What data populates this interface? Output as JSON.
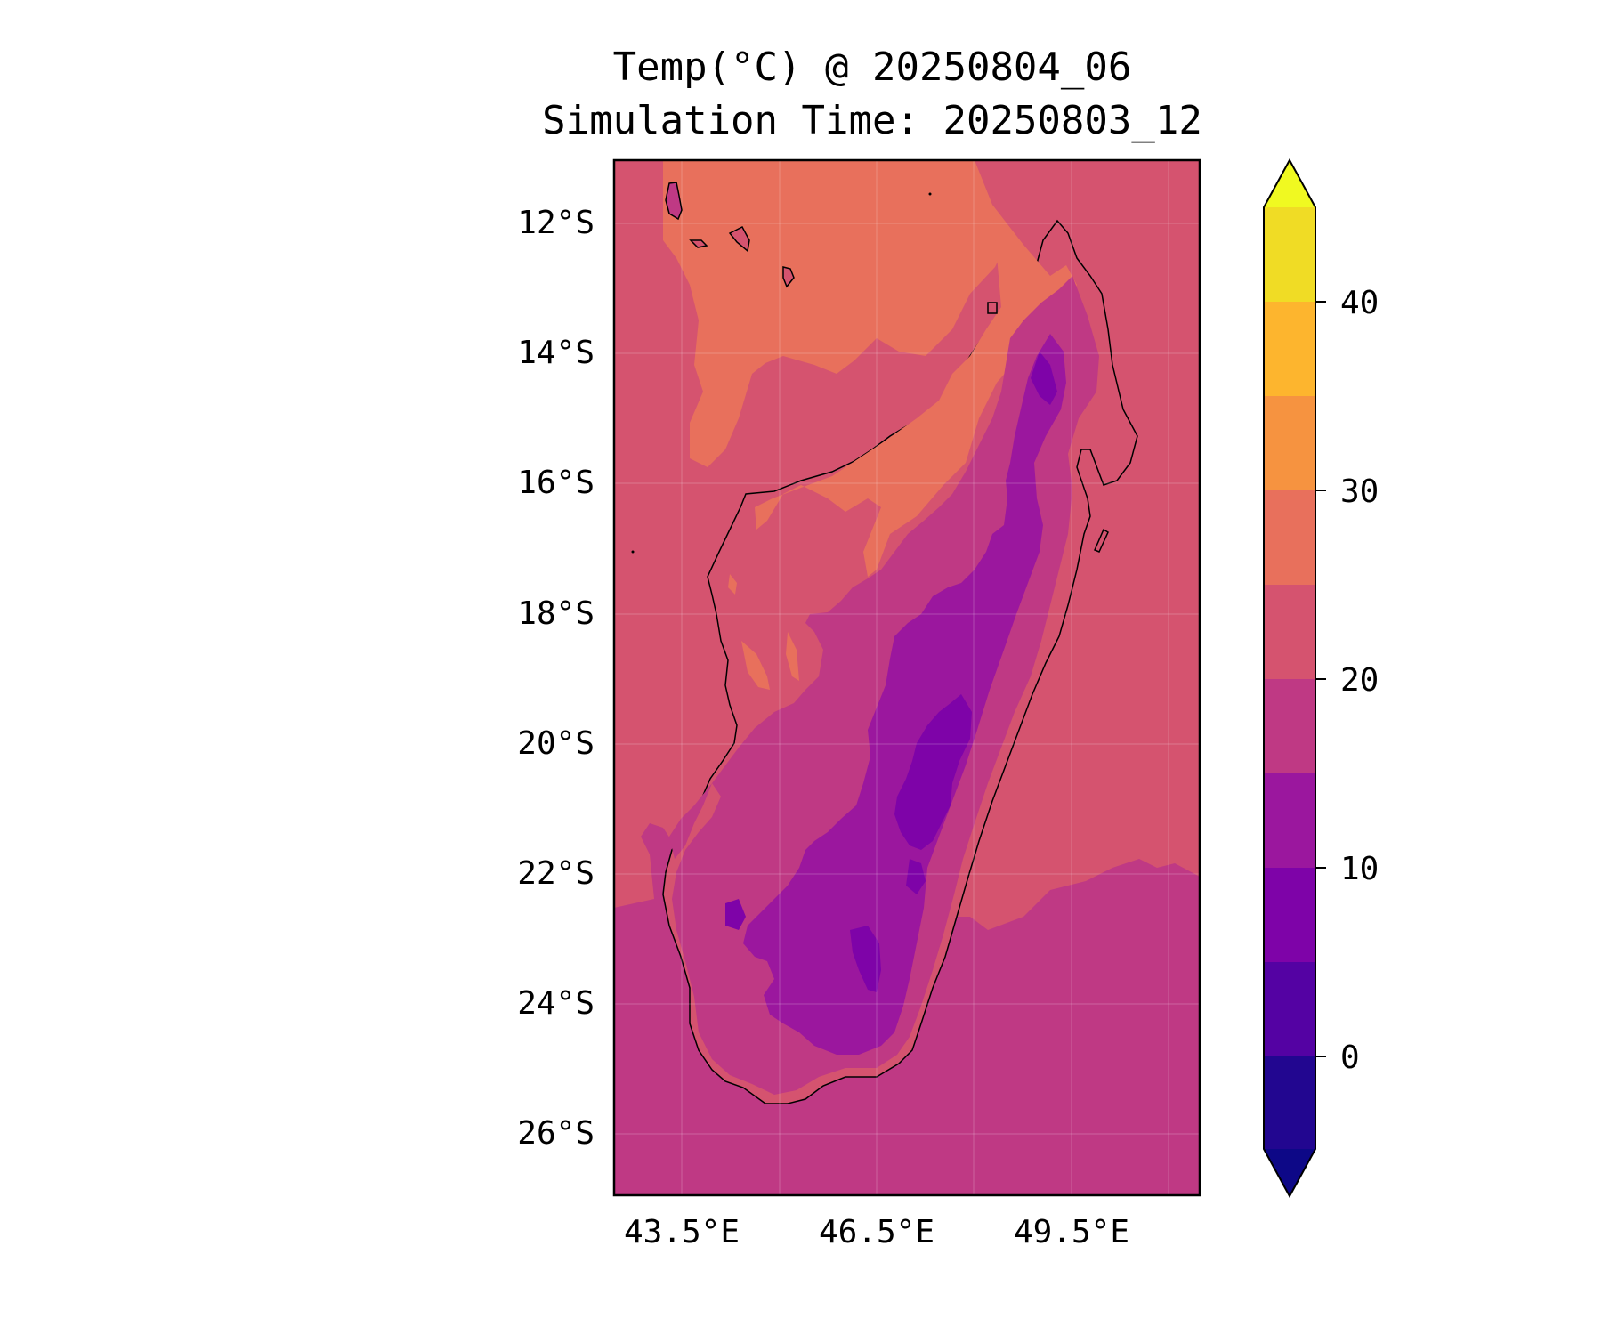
{
  "title": {
    "line1": "Temp(°C) @ 20250804_06",
    "line2": "Simulation Time: 20250803_12"
  },
  "map": {
    "region": "Madagascar",
    "lat_ticks": [
      "12°S",
      "14°S",
      "16°S",
      "18°S",
      "20°S",
      "22°S",
      "24°S",
      "26°S"
    ],
    "lon_ticks": [
      "43.5°E",
      "46.5°E",
      "49.5°E"
    ],
    "colors": {
      "below_neg5": "#0d0887",
      "neg5_0": "#220690",
      "0_5": "#5402a3",
      "5_10": "#7e03a8",
      "10_15": "#9b179e",
      "15_20": "#bf3984",
      "20_25": "#d5536f",
      "25_30": "#e8705c",
      "30_35": "#f69340",
      "35_40": "#fdb52e",
      "40_45": "#f0dc25",
      "above_45": "#f0f921"
    }
  },
  "colorbar": {
    "ticks": [
      "0",
      "10",
      "20",
      "30",
      "40"
    ],
    "extend": "both"
  }
}
